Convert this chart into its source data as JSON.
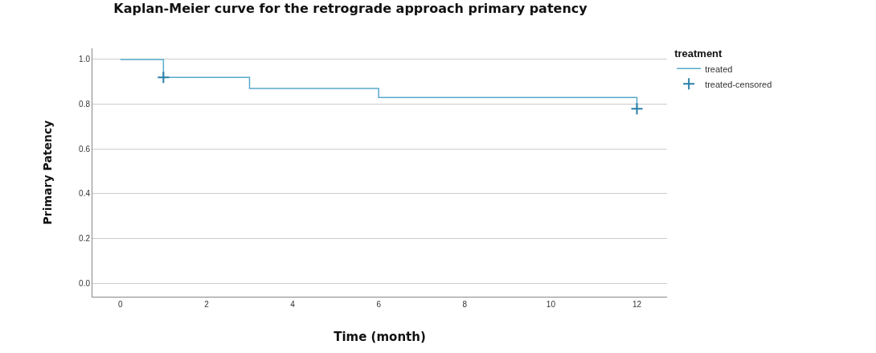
{
  "chart_data": {
    "type": "step",
    "title": "Kaplan-Meier curve for the retrograde approach primary patency",
    "xlabel": "Time (month)",
    "ylabel": "Primary Patency",
    "legend_title": "treatment",
    "series": [
      {
        "name": "treated",
        "color": "#5aa9cc",
        "x": [
          0,
          1,
          3,
          6,
          12
        ],
        "values": [
          1,
          0.92,
          0.87,
          0.83,
          0.78
        ],
        "marker": "none"
      },
      {
        "name": "treated-censored",
        "type": "scatter",
        "color": "#2a7fa8",
        "x": [
          1,
          12
        ],
        "values": [
          0.92,
          0.78
        ],
        "marker": "cross"
      }
    ],
    "xlim": [
      -0.65,
      12.7
    ],
    "xticks": [
      0,
      2,
      4,
      6,
      8,
      10,
      12
    ],
    "ylim": [
      -0.06,
      1.05
    ],
    "yticks": [
      {
        "value": 0,
        "label": "0.0"
      },
      0.2,
      0.4,
      0.6,
      0.8,
      {
        "value": 1,
        "label": "1.0"
      }
    ],
    "grid": "y",
    "legend": "top right"
  }
}
